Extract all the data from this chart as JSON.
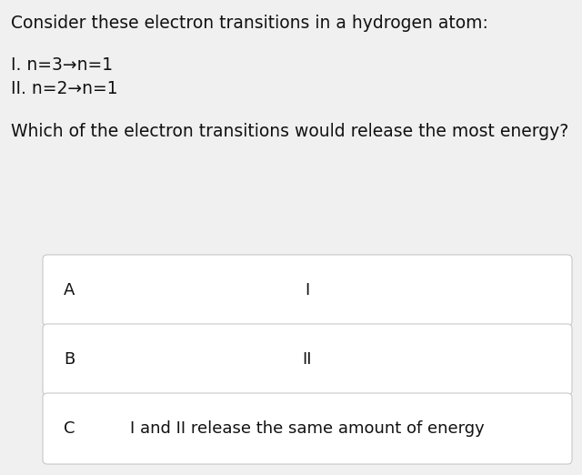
{
  "background_color": "#f0f0f0",
  "card_background": "#ffffff",
  "card_border_color": "#c8c8c8",
  "title_text": "Consider these electron transitions in a hydrogen atom:",
  "line1": "I. n=3→n=1",
  "line2": "II. n=2→n=1",
  "question": "Which of the electron transitions would release the most energy?",
  "options": [
    {
      "label": "A",
      "content": "I"
    },
    {
      "label": "B",
      "content": "II"
    },
    {
      "label": "C",
      "content": "I and II release the same amount of energy"
    }
  ],
  "title_fontsize": 13.5,
  "body_fontsize": 13.5,
  "option_label_fontsize": 13,
  "option_content_fontsize": 13
}
